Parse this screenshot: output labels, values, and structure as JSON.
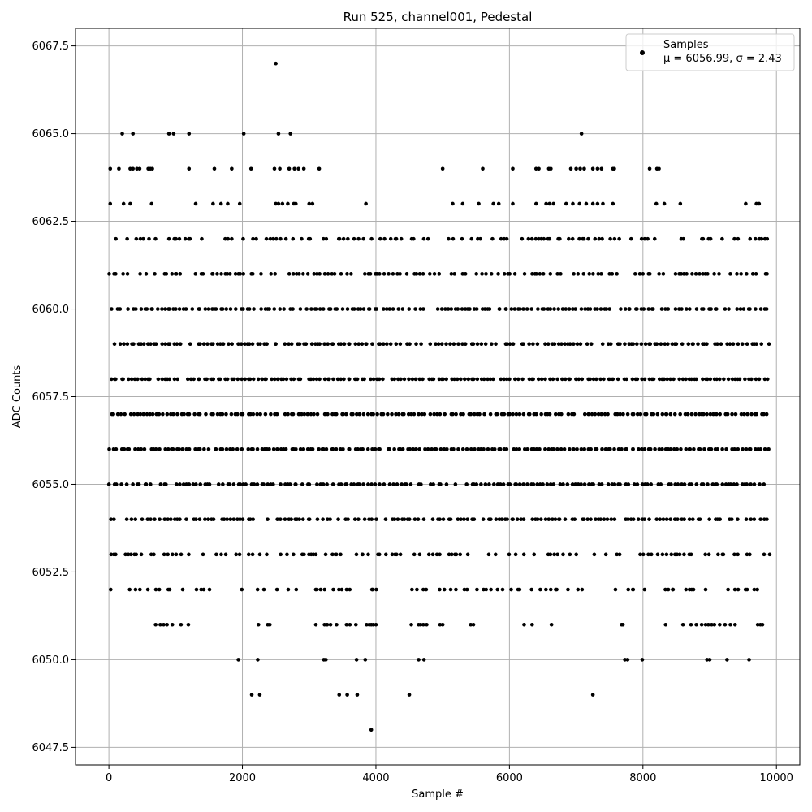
{
  "chart_data": {
    "type": "scatter",
    "title": "Run 525, channel001, Pedestal",
    "xlabel": "Sample #",
    "ylabel": "ADC Counts",
    "xlim": [
      -500,
      10350
    ],
    "ylim": [
      6047.0,
      6068.0
    ],
    "xticks": [
      0,
      2000,
      4000,
      6000,
      8000,
      10000
    ],
    "xtick_labels": [
      "0",
      "2000",
      "4000",
      "6000",
      "8000",
      "10000"
    ],
    "yticks": [
      6047.5,
      6050.0,
      6052.5,
      6055.0,
      6057.5,
      6060.0,
      6062.5,
      6065.0,
      6067.5
    ],
    "ytick_labels": [
      "6047.5",
      "6050.0",
      "6052.5",
      "6055.0",
      "6057.5",
      "6060.0",
      "6062.5",
      "6065.0",
      "6067.5"
    ],
    "grid": true,
    "legend_position": "top-right",
    "legend": {
      "label": "Samples",
      "stats": "μ = 6056.99, σ = 2.43"
    },
    "colors": {
      "points": "#000000",
      "grid": "#b0b0b0"
    },
    "x_range": [
      0,
      9850
    ],
    "series": [
      {
        "name": "Samples",
        "levels": [
          {
            "y": 6067,
            "x": [
              2500
            ]
          },
          {
            "y": 6065,
            "x": [
              200,
              360,
              900,
              970,
              1200,
              2020,
              2540,
              2720,
              7080
            ]
          },
          {
            "y": 6064,
            "x": [
              20,
              150,
              320,
              360,
              420,
              460,
              590,
              620,
              650,
              1200,
              1580,
              1840,
              2130,
              2480,
              2560,
              2700,
              2780,
              2840,
              2920,
              3150,
              5000,
              5600,
              6050,
              6400,
              6440,
              6590,
              6620,
              6920,
              7000,
              7060,
              7120,
              7250,
              7320,
              7380,
              7550,
              7570,
              8100,
              8210,
              8240
            ]
          },
          {
            "y": 6063,
            "x": [
              20,
              220,
              320,
              640,
              1300,
              1560,
              1680,
              1780,
              1960,
              2500,
              2540,
              2600,
              2680,
              2770,
              2800,
              3000,
              3050,
              3850,
              5150,
              5300,
              5540,
              5760,
              5840,
              6050,
              6400,
              6550,
              6600,
              6660,
              6850,
              6950,
              7050,
              7150,
              7250,
              7320,
              7400,
              7550,
              8200,
              8320,
              8560,
              9540,
              9700,
              9740
            ]
          },
          {
            "y": 6062,
            "density": 0.55,
            "gaps": []
          },
          {
            "y": 6061,
            "density": 0.6,
            "gaps": []
          },
          {
            "y": 6060,
            "density": 0.8,
            "gaps": []
          },
          {
            "y": 6059,
            "density": 0.85,
            "gaps": []
          },
          {
            "y": 6058,
            "density": 0.95,
            "gaps": []
          },
          {
            "y": 6057,
            "density": 0.95,
            "gaps": []
          },
          {
            "y": 6056,
            "density": 0.95,
            "gaps": []
          },
          {
            "y": 6055,
            "density": 0.85,
            "gaps": []
          },
          {
            "y": 6054,
            "density": 0.8,
            "gaps": []
          },
          {
            "y": 6053,
            "density": 0.55,
            "gaps": []
          },
          {
            "y": 6052,
            "density": 0.45,
            "gaps": []
          },
          {
            "y": 6051,
            "x": [
              700,
              770,
              820,
              870,
              950,
              1080,
              1190,
              2240,
              2380,
              2410,
              3100,
              3230,
              3270,
              3320,
              3410,
              3560,
              3610,
              3700,
              3860,
              3900,
              3930,
              3960,
              4000,
              4530,
              4640,
              4670,
              4710,
              4760,
              4960,
              5000,
              5420,
              5460,
              6220,
              6340,
              6630,
              7680,
              7700,
              8340,
              8600,
              8720,
              8800,
              8880,
              8940,
              8980,
              9030,
              9070,
              9150,
              9230,
              9310,
              9380,
              9720,
              9760,
              9790
            ]
          },
          {
            "y": 6050,
            "x": [
              1940,
              2230,
              3220,
              3250,
              3710,
              3840,
              4640,
              4720,
              7730,
              7770,
              7990,
              8960,
              9000,
              9260,
              9590
            ]
          },
          {
            "y": 6049,
            "x": [
              2140,
              2260,
              3450,
              3570,
              3720,
              4500,
              7250
            ]
          },
          {
            "y": 6048,
            "x": [
              3930
            ]
          }
        ]
      }
    ]
  }
}
